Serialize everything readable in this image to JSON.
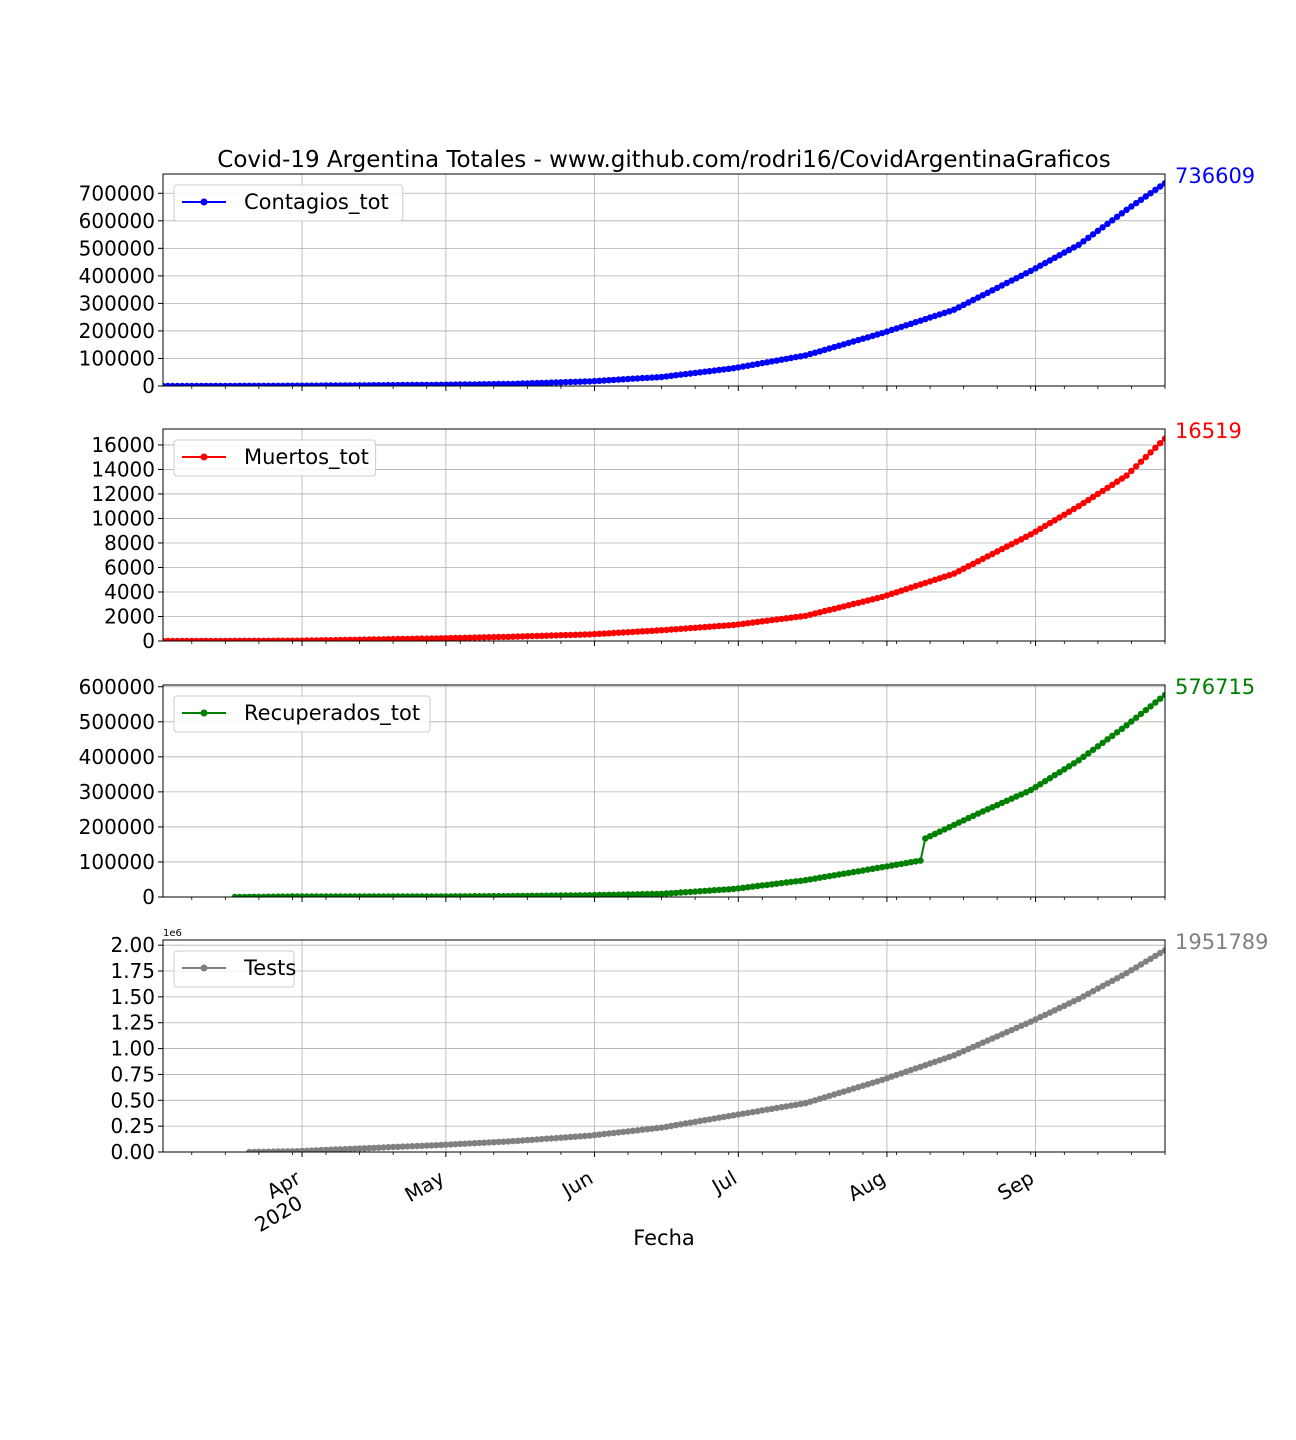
{
  "figure": {
    "title": "Covid-19 Argentina Totales - www.github.com/rodri16/CovidArgentinaGraficos",
    "xlabel": "Fecha"
  },
  "x_axis": {
    "range": [
      "2020-03-03",
      "2020-09-28"
    ],
    "ticks": [
      {
        "date": "2020-04-01",
        "label": "Apr",
        "sublabel": "2020"
      },
      {
        "date": "2020-05-01",
        "label": "May"
      },
      {
        "date": "2020-06-01",
        "label": "Jun"
      },
      {
        "date": "2020-07-01",
        "label": "Jul"
      },
      {
        "date": "2020-08-01",
        "label": "Aug"
      },
      {
        "date": "2020-09-01",
        "label": "Sep"
      }
    ]
  },
  "chart_data": [
    {
      "type": "line",
      "legend": "Contagios_tot",
      "legend_position": "upper-left",
      "last_value_label": "736609",
      "color": "#0000ff",
      "grid": true,
      "ylim": [
        0,
        770000
      ],
      "yticks": [
        0,
        100000,
        200000,
        300000,
        400000,
        500000,
        600000,
        700000
      ],
      "ytick_labels": [
        "0",
        "100000",
        "200000",
        "300000",
        "400000",
        "500000",
        "600000",
        "700000"
      ],
      "start": "2020-03-03",
      "end": "2020-09-28",
      "keypoints": [
        [
          "2020-03-03",
          1
        ],
        [
          "2020-03-31",
          1000
        ],
        [
          "2020-04-30",
          4400
        ],
        [
          "2020-05-15",
          7800
        ],
        [
          "2020-05-31",
          16800
        ],
        [
          "2020-06-15",
          32800
        ],
        [
          "2020-06-30",
          64500
        ],
        [
          "2020-07-15",
          111000
        ],
        [
          "2020-07-31",
          192000
        ],
        [
          "2020-08-15",
          277000
        ],
        [
          "2020-08-31",
          418000
        ],
        [
          "2020-09-10",
          513000
        ],
        [
          "2020-09-20",
          640000
        ],
        [
          "2020-09-28",
          736609
        ]
      ]
    },
    {
      "type": "line",
      "legend": "Muertos_tot",
      "legend_position": "upper-left",
      "last_value_label": "16519",
      "color": "#ff0000",
      "grid": true,
      "ylim": [
        0,
        17300
      ],
      "yticks": [
        0,
        2000,
        4000,
        6000,
        8000,
        10000,
        12000,
        14000,
        16000
      ],
      "ytick_labels": [
        "0",
        "2000",
        "4000",
        "6000",
        "8000",
        "10000",
        "12000",
        "14000",
        "16000"
      ],
      "start": "2020-03-03",
      "end": "2020-09-28",
      "keypoints": [
        [
          "2020-03-03",
          0
        ],
        [
          "2020-03-31",
          24
        ],
        [
          "2020-04-30",
          218
        ],
        [
          "2020-05-15",
          353
        ],
        [
          "2020-05-31",
          539
        ],
        [
          "2020-06-15",
          878
        ],
        [
          "2020-06-30",
          1307
        ],
        [
          "2020-07-15",
          2050
        ],
        [
          "2020-07-31",
          3596
        ],
        [
          "2020-08-15",
          5500
        ],
        [
          "2020-08-31",
          8700
        ],
        [
          "2020-09-10",
          11000
        ],
        [
          "2020-09-20",
          13500
        ],
        [
          "2020-09-28",
          16519
        ]
      ]
    },
    {
      "type": "line",
      "legend": "Recuperados_tot",
      "legend_position": "upper-left",
      "last_value_label": "576715",
      "color": "#008000",
      "grid": true,
      "ylim": [
        0,
        605000
      ],
      "yticks": [
        0,
        100000,
        200000,
        300000,
        400000,
        500000,
        600000
      ],
      "ytick_labels": [
        "0",
        "100000",
        "200000",
        "300000",
        "400000",
        "500000",
        "600000"
      ],
      "start": "2020-03-18",
      "end": "2020-09-28",
      "keypoints": [
        [
          "2020-03-18",
          1
        ],
        [
          "2020-03-31",
          1500
        ],
        [
          "2020-04-30",
          1700
        ],
        [
          "2020-05-15",
          2700
        ],
        [
          "2020-05-31",
          5100
        ],
        [
          "2020-06-15",
          9000
        ],
        [
          "2020-06-30",
          23000
        ],
        [
          "2020-07-15",
          48000
        ],
        [
          "2020-07-31",
          85000
        ],
        [
          "2020-08-08",
          104000
        ],
        [
          "2020-08-09",
          167000
        ],
        [
          "2020-08-20",
          238000
        ],
        [
          "2020-08-31",
          305000
        ],
        [
          "2020-09-10",
          390000
        ],
        [
          "2020-09-20",
          490000
        ],
        [
          "2020-09-28",
          576715
        ]
      ]
    },
    {
      "type": "line",
      "legend": "Tests",
      "legend_position": "upper-left",
      "last_value_label": "1951789",
      "color": "#808080",
      "grid": true,
      "ylim": [
        0,
        2050000
      ],
      "yticks": [
        0,
        250000,
        500000,
        750000,
        1000000,
        1250000,
        1500000,
        1750000,
        2000000
      ],
      "ytick_labels": [
        "0.00",
        "0.25",
        "0.50",
        "0.75",
        "1.00",
        "1.25",
        "1.50",
        "1.75",
        "2.00"
      ],
      "offset_label": "1e6",
      "start": "2020-03-21",
      "end": "2020-09-28",
      "keypoints": [
        [
          "2020-03-21",
          1
        ],
        [
          "2020-03-31",
          8000
        ],
        [
          "2020-04-30",
          68000
        ],
        [
          "2020-05-15",
          105000
        ],
        [
          "2020-05-31",
          158000
        ],
        [
          "2020-06-15",
          236000
        ],
        [
          "2020-06-30",
          355000
        ],
        [
          "2020-07-15",
          472000
        ],
        [
          "2020-07-31",
          697000
        ],
        [
          "2020-08-15",
          935000
        ],
        [
          "2020-08-31",
          1260000
        ],
        [
          "2020-09-10",
          1480000
        ],
        [
          "2020-09-20",
          1730000
        ],
        [
          "2020-09-28",
          1951789
        ]
      ]
    }
  ]
}
